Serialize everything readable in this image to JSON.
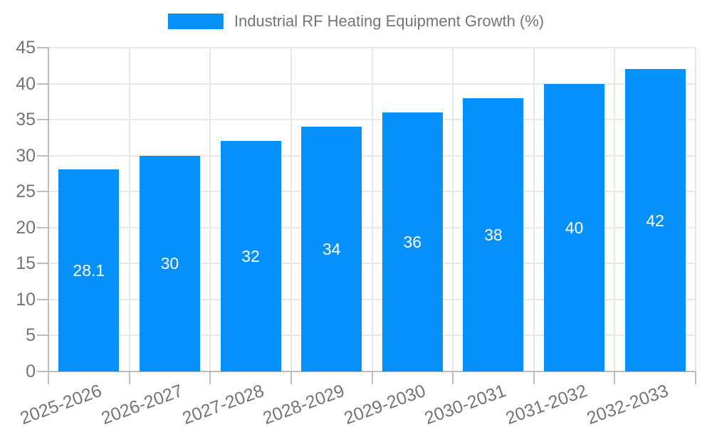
{
  "legend": {
    "series_label": "Industrial RF Heating Equipment Growth (%)"
  },
  "chart_data": {
    "type": "bar",
    "title": "Industrial RF Heating Equipment Growth (%)",
    "categories": [
      "2025-2026",
      "2026-2027",
      "2027-2028",
      "2028-2029",
      "2029-2030",
      "2030-2031",
      "2031-2032",
      "2032-2033"
    ],
    "values": [
      28.1,
      30,
      32,
      34,
      36,
      38,
      40,
      42
    ],
    "bar_labels": [
      "28.1",
      "30",
      "32",
      "34",
      "36",
      "38",
      "40",
      "42"
    ],
    "xlabel": "",
    "ylabel": "",
    "ylim": [
      0,
      45
    ],
    "ytick_step": 5,
    "ytick_labels": [
      "0",
      "5",
      "10",
      "15",
      "20",
      "25",
      "30",
      "35",
      "40",
      "45"
    ],
    "grid": true,
    "legend_position": "top",
    "x_label_rotation_deg": -20,
    "colors": {
      "bar": "#0690fa",
      "bar_label": "#ffffff",
      "axis_label": "#757575",
      "legend_text": "#757575",
      "grid_line": "#e8e8e8",
      "axis_line": "#bdbdbd",
      "background": "#ffffff"
    }
  }
}
